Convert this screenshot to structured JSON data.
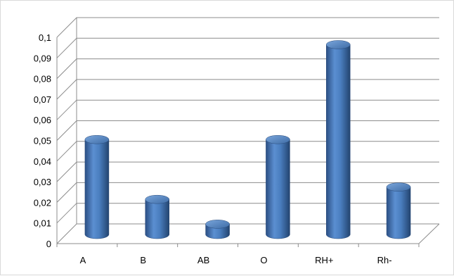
{
  "chart_data": {
    "type": "bar",
    "style": "3d-cylinder",
    "categories": [
      "A",
      "B",
      "AB",
      "O",
      "RH+",
      "Rh-"
    ],
    "values": [
      0.046,
      0.017,
      0.005,
      0.046,
      0.092,
      0.023
    ],
    "ylim": [
      0,
      0.1
    ],
    "yticks": [
      "0",
      "0,01",
      "0,02",
      "0,03",
      "0,04",
      "0,05",
      "0,06",
      "0,07",
      "0,08",
      "0,09",
      "0,1"
    ],
    "grid": true,
    "legend": "none",
    "bar_color": "#4a7ebf",
    "title": "",
    "xlabel": "",
    "ylabel": ""
  }
}
